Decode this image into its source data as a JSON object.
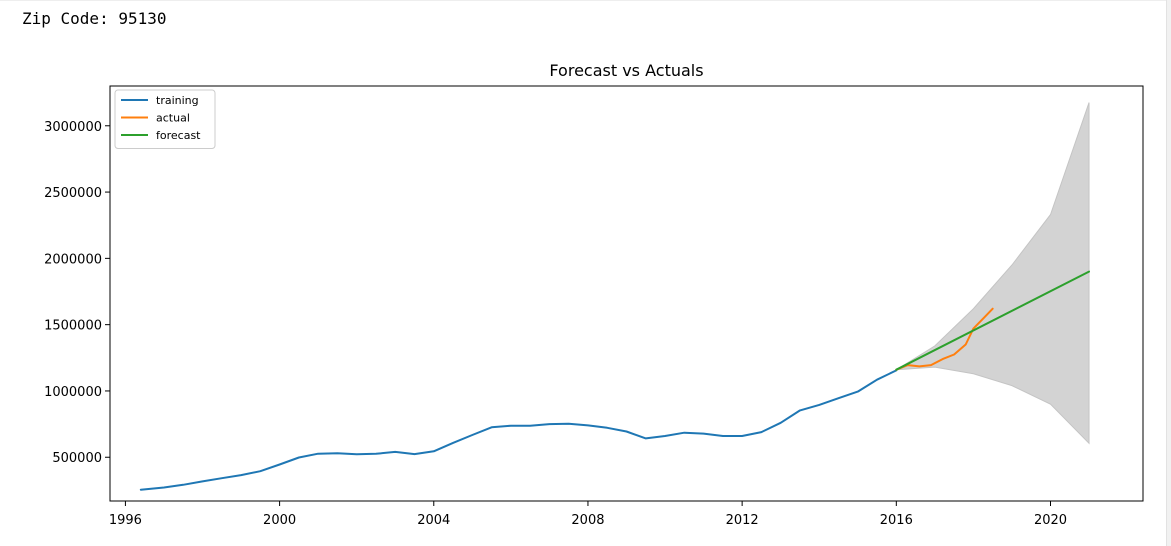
{
  "output": {
    "zip_prefix": "Zip Code:",
    "zip_value": "95130"
  },
  "chart_data": {
    "type": "line",
    "title": "Forecast vs Actuals",
    "xlabel": "",
    "ylabel": "",
    "xlim": [
      1995.6,
      2022.4
    ],
    "ylim": [
      170000,
      3300000
    ],
    "xticks": [
      1996,
      2000,
      2004,
      2008,
      2012,
      2016,
      2020
    ],
    "yticks": [
      500000,
      1000000,
      1500000,
      2000000,
      2500000,
      3000000
    ],
    "legend": "upper-left",
    "grid": false,
    "series": [
      {
        "name": "training",
        "color": "#1f77b4",
        "points": [
          [
            1996.4,
            255000
          ],
          [
            1997.0,
            272000
          ],
          [
            1997.5,
            292000
          ],
          [
            1998.0,
            318000
          ],
          [
            1998.5,
            342000
          ],
          [
            1999.0,
            365000
          ],
          [
            1999.5,
            395000
          ],
          [
            2000.0,
            445000
          ],
          [
            2000.5,
            498000
          ],
          [
            2001.0,
            527000
          ],
          [
            2001.5,
            530000
          ],
          [
            2002.0,
            522000
          ],
          [
            2002.5,
            526000
          ],
          [
            2003.0,
            540000
          ],
          [
            2003.5,
            524000
          ],
          [
            2004.0,
            545000
          ],
          [
            2004.5,
            608000
          ],
          [
            2005.0,
            668000
          ],
          [
            2005.5,
            726000
          ],
          [
            2006.0,
            738000
          ],
          [
            2006.5,
            737000
          ],
          [
            2007.0,
            750000
          ],
          [
            2007.5,
            752000
          ],
          [
            2008.0,
            740000
          ],
          [
            2008.5,
            722000
          ],
          [
            2009.0,
            694000
          ],
          [
            2009.5,
            642000
          ],
          [
            2010.0,
            660000
          ],
          [
            2010.5,
            685000
          ],
          [
            2011.0,
            678000
          ],
          [
            2011.5,
            660000
          ],
          [
            2012.0,
            660000
          ],
          [
            2012.5,
            690000
          ],
          [
            2013.0,
            760000
          ],
          [
            2013.5,
            853000
          ],
          [
            2014.0,
            895000
          ],
          [
            2014.5,
            945000
          ],
          [
            2015.0,
            995000
          ],
          [
            2015.5,
            1085000
          ],
          [
            2016.0,
            1155000
          ]
        ]
      },
      {
        "name": "actual",
        "color": "#ff7f0e",
        "points": [
          [
            2016.0,
            1160000
          ],
          [
            2016.3,
            1195000
          ],
          [
            2016.6,
            1185000
          ],
          [
            2016.9,
            1195000
          ],
          [
            2017.2,
            1240000
          ],
          [
            2017.5,
            1275000
          ],
          [
            2017.8,
            1350000
          ],
          [
            2018.0,
            1470000
          ],
          [
            2018.3,
            1560000
          ],
          [
            2018.5,
            1620000
          ]
        ]
      },
      {
        "name": "forecast",
        "color": "#2ca02c",
        "points": [
          [
            2016.0,
            1160000
          ],
          [
            2021.0,
            1900000
          ]
        ]
      }
    ],
    "confidence_band": {
      "color": "#d3d3d3",
      "upper": [
        [
          2016.0,
          1160000
        ],
        [
          2017.0,
          1340000
        ],
        [
          2018.0,
          1620000
        ],
        [
          2019.0,
          1950000
        ],
        [
          2020.0,
          2330000
        ],
        [
          2021.0,
          3175000
        ]
      ],
      "lower": [
        [
          2016.0,
          1160000
        ],
        [
          2017.0,
          1180000
        ],
        [
          2018.0,
          1130000
        ],
        [
          2019.0,
          1040000
        ],
        [
          2020.0,
          900000
        ],
        [
          2021.0,
          605000
        ]
      ]
    }
  }
}
